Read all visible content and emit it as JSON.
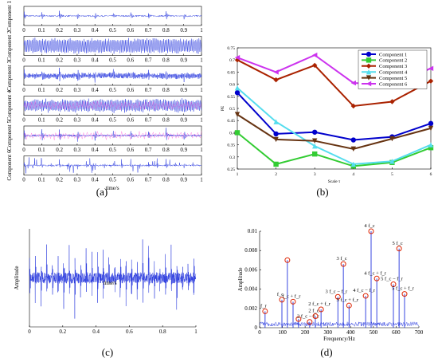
{
  "chart_data": [
    {
      "panel": "(a)",
      "type": "line",
      "rows": [
        {
          "label": "Component 1",
          "pattern": "impulse",
          "amp": 0.55,
          "period": 0.1,
          "noise": 0.25
        },
        {
          "label": "Component 2",
          "pattern": "dense",
          "amp": 0.9,
          "period": 0.01,
          "noise": 0.2
        },
        {
          "label": "Component 3",
          "pattern": "impulse-dense",
          "amp": 0.8,
          "period": 0.1,
          "noise": 0.4
        },
        {
          "label": "Component 4",
          "pattern": "dense-mixed",
          "amp": 0.75,
          "period": 0.01,
          "noise": 0.35
        },
        {
          "label": "Component 5",
          "pattern": "impulse",
          "amp": 0.8,
          "period": 0.1,
          "noise": 0.3
        },
        {
          "label": "Component 6",
          "pattern": "spiky",
          "amp": 0.7,
          "period": 0.05,
          "noise": 0.25
        }
      ],
      "xticks": [
        "0",
        "0.1",
        "0.2",
        "0.3",
        "0.4",
        "0.5",
        "0.6",
        "0.7",
        "0.8",
        "0.9",
        "1"
      ],
      "xlabel": "time/s",
      "xlim": [
        0,
        1
      ]
    },
    {
      "panel": "(b)",
      "type": "line",
      "xlabel": "Scale τ",
      "ylabel": "PE",
      "x": [
        1,
        2,
        3,
        4,
        5,
        6
      ],
      "xlim": [
        1,
        6
      ],
      "ylim": [
        0.25,
        0.75
      ],
      "yticks": [
        "0.25",
        "0.3",
        "0.35",
        "0.4",
        "0.45",
        "0.5",
        "0.55",
        "0.6",
        "0.65",
        "0.7",
        "0.75"
      ],
      "xticks": [
        "1",
        "2",
        "3",
        "4",
        "5",
        "6"
      ],
      "legend_position": "top-right",
      "series": [
        {
          "name": "Component 1",
          "color": "#0000cc",
          "marker": "circle",
          "values": [
            0.565,
            0.395,
            0.402,
            0.37,
            0.383,
            0.438
          ]
        },
        {
          "name": "Component 2",
          "color": "#33cc33",
          "marker": "square",
          "values": [
            0.4,
            0.27,
            0.312,
            0.262,
            0.277,
            0.338
          ]
        },
        {
          "name": "Component 3",
          "color": "#aa2200",
          "marker": "diamond",
          "values": [
            0.7,
            0.618,
            0.678,
            0.51,
            0.528,
            0.613
          ]
        },
        {
          "name": "Component 4",
          "color": "#55ddee",
          "marker": "triangle-up",
          "values": [
            0.585,
            0.445,
            0.345,
            0.27,
            0.282,
            0.35
          ]
        },
        {
          "name": "Component 5",
          "color": "#663311",
          "marker": "triangle-down",
          "values": [
            0.475,
            0.372,
            0.366,
            0.333,
            0.375,
            0.418
          ]
        },
        {
          "name": "Component 6",
          "color": "#cc33ee",
          "marker": "triangle-left",
          "values": [
            0.71,
            0.65,
            0.72,
            0.605,
            0.6,
            0.665
          ]
        }
      ]
    },
    {
      "panel": "(c)",
      "type": "line",
      "xlabel": "time/s",
      "ylabel": "Amplitude",
      "xlim": [
        0,
        1
      ],
      "xticks": [
        "0",
        "0.2",
        "0.4",
        "0.6",
        "0.8",
        "1"
      ],
      "color": "#2233dd"
    },
    {
      "panel": "(d)",
      "type": "line",
      "xlabel": "Frequency/Hz",
      "ylabel": "Amplitude",
      "xlim": [
        0,
        700
      ],
      "ylim": [
        0,
        0.01
      ],
      "xticks": [
        "0",
        "100",
        "200",
        "300",
        "400",
        "500",
        "600",
        "700"
      ],
      "yticks": [
        "0",
        "0.002",
        "0.004",
        "0.006",
        "0.008",
        "0.01"
      ],
      "color": "#2233dd",
      "peaks": [
        {
          "x": 24,
          "y": 0.0017,
          "label": "f_r"
        },
        {
          "x": 98,
          "y": 0.0029,
          "label": "f_c"
        },
        {
          "x": 122,
          "y": 0.007,
          "label": ""
        },
        {
          "x": 147,
          "y": 0.0027,
          "label": "f_c + f_r"
        },
        {
          "x": 171,
          "y": 0.0009,
          "label": ""
        },
        {
          "x": 220,
          "y": 0.0006,
          "label": "2 f_c − f_r"
        },
        {
          "x": 245,
          "y": 0.0012,
          "label": "2 f_c"
        },
        {
          "x": 270,
          "y": 0.0019,
          "label": "2 f_c + f_r"
        },
        {
          "x": 344,
          "y": 0.0032,
          "label": "3 f_c − f_r"
        },
        {
          "x": 368,
          "y": 0.0066,
          "label": "3 f_c"
        },
        {
          "x": 393,
          "y": 0.0023,
          "label": "3 f_c + f_r"
        },
        {
          "x": 466,
          "y": 0.0033,
          "label": "4 f_c − f_r"
        },
        {
          "x": 490,
          "y": 0.01,
          "label": "4 f_c"
        },
        {
          "x": 515,
          "y": 0.0051,
          "label": "4 f_c + f_r"
        },
        {
          "x": 588,
          "y": 0.0045,
          "label": "5 f_c − f_r"
        },
        {
          "x": 613,
          "y": 0.0082,
          "label": "5 f_c"
        },
        {
          "x": 637,
          "y": 0.0035,
          "label": "5 f_c + f_r"
        }
      ]
    }
  ],
  "captions": {
    "a": "(a)",
    "b": "(b)",
    "c": "(c)",
    "d": "(d)"
  }
}
